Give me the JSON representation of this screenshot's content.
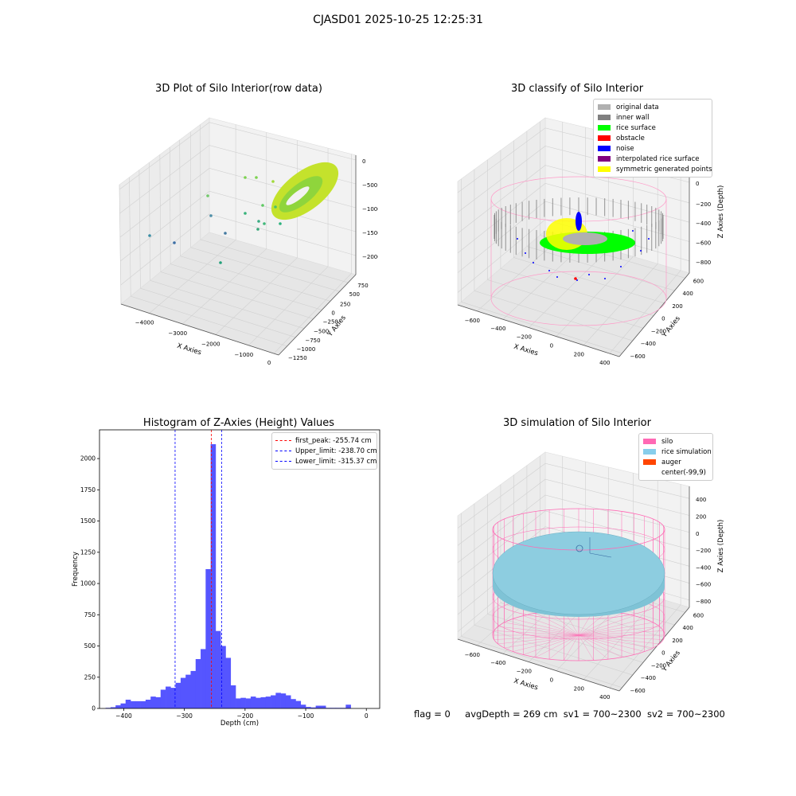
{
  "suptitle": "CJASD01 2025-10-25 12:25:31",
  "status": {
    "flag": "flag = 0",
    "avg_depth": "avgDepth = 269 cm",
    "sv1": "sv1 = 700~2300",
    "sv2": "sv2 = 700~2300"
  },
  "chart_data": [
    {
      "type": "scatter",
      "title": "3D Plot of Silo Interior(row data)",
      "xlabel": "X Axies",
      "ylabel": "Y Axies",
      "zlabel": "Z Axies (Depth)",
      "x_ticks": [
        "−4000",
        "−3000",
        "−2000",
        "−1000",
        "0"
      ],
      "y_ticks": [
        "−1250",
        "−1000",
        "−750",
        "−500",
        "−250",
        "0",
        "250",
        "500",
        "750"
      ],
      "z_ticks": [
        "−2000",
        "−1500",
        "−1000",
        "−500",
        "0"
      ],
      "colormap": "viridis"
    },
    {
      "type": "scatter",
      "title": "3D classify of Silo Interior",
      "xlabel": "X Axies",
      "ylabel": "Y Axies",
      "zlabel": "Z Axies (Depth)",
      "x_ticks": [
        "−600",
        "−400",
        "−200",
        "0",
        "200",
        "400"
      ],
      "y_ticks": [
        "−600",
        "−400",
        "−200",
        "0",
        "200",
        "400",
        "600"
      ],
      "z_ticks": [
        "−800",
        "−600",
        "−400",
        "−200",
        "0",
        "200"
      ],
      "legend": [
        {
          "label": "original data",
          "color": "#b0b0b0"
        },
        {
          "label": "inner wall",
          "color": "#808080"
        },
        {
          "label": "rice surface",
          "color": "#00ff00"
        },
        {
          "label": "obstacle",
          "color": "#ff0000"
        },
        {
          "label": "noise",
          "color": "#0000ff"
        },
        {
          "label": "interpolated rice surface",
          "color": "#800080"
        },
        {
          "label": "symmetric generated points",
          "color": "#ffff00"
        }
      ]
    },
    {
      "type": "bar",
      "title": "Histogram of Z-Axies (Height) Values",
      "xlabel": "Depth (cm)",
      "ylabel": "Frequency",
      "xlim": [
        -440,
        22
      ],
      "ylim": [
        0,
        2230
      ],
      "x_ticks": [
        -400,
        -300,
        -200,
        -100,
        0
      ],
      "x_tick_labels": [
        "−400",
        "−300",
        "−200",
        "−100",
        "0"
      ],
      "y_ticks": [
        0,
        250,
        500,
        750,
        1000,
        1250,
        1500,
        1750,
        2000
      ],
      "bin_start": -430,
      "bin_width": 8.25,
      "values": [
        5,
        10,
        25,
        40,
        70,
        58,
        58,
        58,
        70,
        95,
        90,
        150,
        175,
        165,
        205,
        245,
        270,
        300,
        395,
        475,
        1115,
        2115,
        620,
        500,
        405,
        185,
        80,
        85,
        80,
        95,
        85,
        90,
        95,
        105,
        125,
        120,
        105,
        75,
        60,
        30,
        12,
        8,
        22,
        22,
        5,
        5,
        5,
        5,
        30,
        0
      ],
      "bar_color": "#5555ff",
      "vlines": [
        {
          "label": "first_peak: -255.74 cm",
          "x": -255.74,
          "color": "#ff0000"
        },
        {
          "label": "Upper_limit: -238.70 cm",
          "x": -238.7,
          "color": "#0000ff"
        },
        {
          "label": "Lower_limit: -315.37 cm",
          "x": -315.37,
          "color": "#0000ff"
        }
      ]
    },
    {
      "type": "scatter",
      "title": "3D simulation of Silo Interior",
      "xlabel": "X Axies",
      "ylabel": "Y Axies",
      "zlabel": "Z Axies (Depth)",
      "x_ticks": [
        "−600",
        "−400",
        "−200",
        "0",
        "200",
        "400"
      ],
      "y_ticks": [
        "−600",
        "−400",
        "−200",
        "0",
        "200",
        "400",
        "600"
      ],
      "z_ticks": [
        "−800",
        "−600",
        "−400",
        "−200",
        "0",
        "200",
        "400"
      ],
      "legend": [
        {
          "label": "silo",
          "color": "#ff69b4"
        },
        {
          "label": "rice simulation",
          "color": "#87ceeb"
        },
        {
          "label": "auger",
          "color": "#ff4500"
        },
        {
          "label": "center(-99,9)",
          "color": "#ffffff"
        }
      ]
    }
  ]
}
